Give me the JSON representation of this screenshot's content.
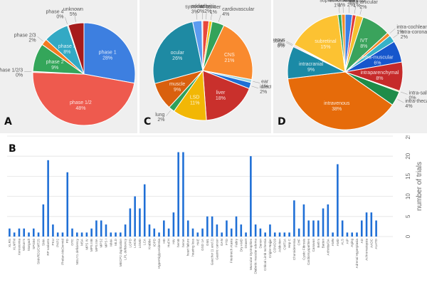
{
  "panels": {
    "A": "A",
    "B": "B",
    "C": "C",
    "D": "D"
  },
  "chart_data": [
    {
      "panel": "A",
      "type": "pie",
      "title": "",
      "start_angle_deg": 0,
      "slices": [
        {
          "label": "phase 1",
          "value": 28,
          "pct": "28%",
          "color": "#3d7fe0",
          "inside": true
        },
        {
          "label": "phase 1/2",
          "value": 48,
          "pct": "48%",
          "color": "#ee5a4e",
          "inside": true
        },
        {
          "label": "phase 1/2/3",
          "value": 0.3,
          "pct": "0%",
          "color": "#b8b8b8",
          "inside": false
        },
        {
          "label": "phase 2",
          "value": 9,
          "pct": "9%",
          "color": "#34a65a",
          "inside": true
        },
        {
          "label": "phase 2/3",
          "value": 2,
          "pct": "2%",
          "color": "#f47b20",
          "inside": false
        },
        {
          "label": "phase 3",
          "value": 8,
          "pct": "8%",
          "color": "#33a9c4",
          "inside": true
        },
        {
          "label": "phase 4",
          "value": 0.3,
          "pct": "0%",
          "color": "#888888",
          "inside": false
        },
        {
          "label": "unknown",
          "value": 5,
          "pct": "5%",
          "color": "#a61c1c",
          "inside": false
        }
      ]
    },
    {
      "panel": "C",
      "type": "pie",
      "title": "",
      "slices": [
        {
          "label": "arthritis",
          "value": 2,
          "pct": "2%",
          "color": "#e8483c",
          "inside": false
        },
        {
          "label": "cancer",
          "value": 1,
          "pct": "1%",
          "color": "#f5c518",
          "inside": false
        },
        {
          "label": "cardiovascular",
          "value": 4,
          "pct": "4%",
          "color": "#33a35a",
          "inside": false
        },
        {
          "label": "CNS",
          "value": 21,
          "pct": "21%",
          "color": "#f98a2e",
          "inside": true
        },
        {
          "label": "ear",
          "value": 1,
          "pct": "1%",
          "color": "#99d5e0",
          "inside": false
        },
        {
          "label": "infectious",
          "value": 2,
          "pct": "2%",
          "color": "#1f6fd6",
          "inside": false
        },
        {
          "label": "liver",
          "value": 18,
          "pct": "18%",
          "color": "#c9302c",
          "inside": true
        },
        {
          "label": "LSD",
          "value": 11,
          "pct": "11%",
          "color": "#f2b705",
          "inside": true
        },
        {
          "label": "lung",
          "value": 2,
          "pct": "2%",
          "color": "#2fa05a",
          "inside": false
        },
        {
          "label": "muscle",
          "value": 9,
          "pct": "9%",
          "color": "#d9600e",
          "inside": true
        },
        {
          "label": "ocular",
          "value": 26,
          "pct": "26%",
          "color": "#1e8aa3",
          "inside": true
        },
        {
          "label": "systemic",
          "value": 3,
          "pct": "3%",
          "color": "#5b9bf0",
          "inside": false
        },
        {
          "label": "addiction",
          "value": 0.3,
          "pct": "0%",
          "color": "#bbbbbb",
          "inside": false
        }
      ]
    },
    {
      "panel": "D",
      "type": "pie",
      "title": "",
      "slices": [
        {
          "label": "airway",
          "value": 2,
          "pct": "2%",
          "color": "#3a7ee6",
          "inside": false
        },
        {
          "label": "ex vivo",
          "value": 1,
          "pct": "1%",
          "color": "#e23b3b",
          "inside": false
        },
        {
          "label": "intra-articular",
          "value": 2,
          "pct": "2%",
          "color": "#f6c02e",
          "inside": false
        },
        {
          "label": "IVT",
          "value": 8,
          "pct": "8%",
          "color": "#3aa35c",
          "inside": true
        },
        {
          "label": "intra-cochlear",
          "value": 1,
          "pct": "1%",
          "color": "#f08a2a",
          "inside": false
        },
        {
          "label": "intra-coronary",
          "value": 2,
          "pct": "2%",
          "color": "#36b2c8",
          "inside": false
        },
        {
          "label": "intra-muscular",
          "value": 6,
          "pct": "6%",
          "color": "#1656cc",
          "inside": true
        },
        {
          "label": "intraparenchymal",
          "value": 8,
          "pct": "8%",
          "color": "#c62a2a",
          "inside": true
        },
        {
          "label": "intra-salivary",
          "value": 0.3,
          "pct": "0%",
          "color": "#e6c44a",
          "inside": false
        },
        {
          "label": "intra-thecal",
          "value": 4,
          "pct": "4%",
          "color": "#1e8c49",
          "inside": false
        },
        {
          "label": "intravenous",
          "value": 38,
          "pct": "38%",
          "color": "#e66b0a",
          "inside": true
        },
        {
          "label": "intracranial",
          "value": 9,
          "pct": "9%",
          "color": "#1b8aa6",
          "inside": true
        },
        {
          "label": "limb perfusion",
          "value": 0.3,
          "pct": "0%",
          "color": "#c9a0dc",
          "inside": false
        },
        {
          "label": "percutaneous",
          "value": 0.3,
          "pct": "0%",
          "color": "#e8a060",
          "inside": false
        },
        {
          "label": "subretinal",
          "value": 15,
          "pct": "15%",
          "color": "#fcc232",
          "inside": true
        },
        {
          "label": "suprachorodidal",
          "value": 1,
          "pct": "1%",
          "color": "#36a85a",
          "inside": false
        },
        {
          "label": "undisclosed",
          "value": 1,
          "pct": "1%",
          "color": "#f28c28",
          "inside": false
        }
      ]
    },
    {
      "panel": "B",
      "type": "bar",
      "title": "",
      "xlabel": "",
      "ylabel": "number of trials",
      "ylim": [
        0,
        25
      ],
      "yticks": [
        0,
        5,
        10,
        15,
        20,
        25
      ],
      "grid": true,
      "bar_color": "#1f6fd6",
      "categories": [
        "XLRS",
        "XLMTM",
        "Xerostomia",
        "Wilson's",
        "Stargadt",
        "SPG50",
        "SMARD1/CMT2S",
        "SMA",
        "RP variants",
        "PKU",
        "PKP2",
        "Phelan-McDermid",
        "PD",
        "OTC",
        "NGLY1 deficiency",
        "MSA",
        "MPS IV",
        "MPS IIIB",
        "MPS IIIA",
        "MPS2",
        "MPS I",
        "MMA",
        "MLD",
        "MECP2 duplication",
        "LPL deficiency",
        "LOPD",
        "LHON",
        "LGMD",
        "LCA",
        "Krabbe",
        "IOPD",
        "Hypertriglyceridemia",
        "HD",
        "HoFH",
        "HIV",
        "hemB",
        "hemA",
        "heart failure",
        "hearing loss",
        "HAE",
        "GSD 1A",
        "GM1",
        "Gaucher (1 and 2)",
        "Gastric cancer",
        "GAN",
        "FTD",
        "Friedreich Ataxia",
        "Fabry",
        "Dry AMD",
        "Dravet",
        "Muscular Dystrophies",
        "Diabetic macular edema",
        "Danon",
        "Critical Limb Ischemia",
        "Crigler-Najjar",
        "COVID19",
        "Addiction",
        "CMT1A",
        "Hep C",
        "Choroideremia",
        "CHF",
        "Cystic Fibrosis",
        "Cardiomyopathies",
        "Canavan",
        "Beth's",
        "Batten",
        "Arthritis/OA",
        "AMN",
        "AMD",
        "ALS",
        "AIP",
        "Aging",
        "Adrenal Hyperplasia",
        "AD",
        "Achromatopsia",
        "AADC",
        "A1ATD"
      ],
      "values": [
        2,
        1,
        2,
        2,
        1,
        2,
        1,
        8,
        19,
        3,
        1,
        1,
        16,
        2,
        1,
        1,
        1,
        2,
        4,
        4,
        3,
        1,
        1,
        1,
        3,
        7,
        10,
        7,
        13,
        3,
        2,
        1,
        4,
        2,
        6,
        21,
        21,
        4,
        2,
        1,
        2,
        5,
        5,
        3,
        1,
        4,
        2,
        5,
        3,
        1,
        20,
        3,
        2,
        1,
        3,
        1,
        1,
        1,
        1,
        9,
        2,
        8,
        4,
        4,
        4,
        7,
        8,
        1,
        18,
        4,
        1,
        1,
        1,
        4,
        6,
        6,
        4
      ]
    }
  ]
}
